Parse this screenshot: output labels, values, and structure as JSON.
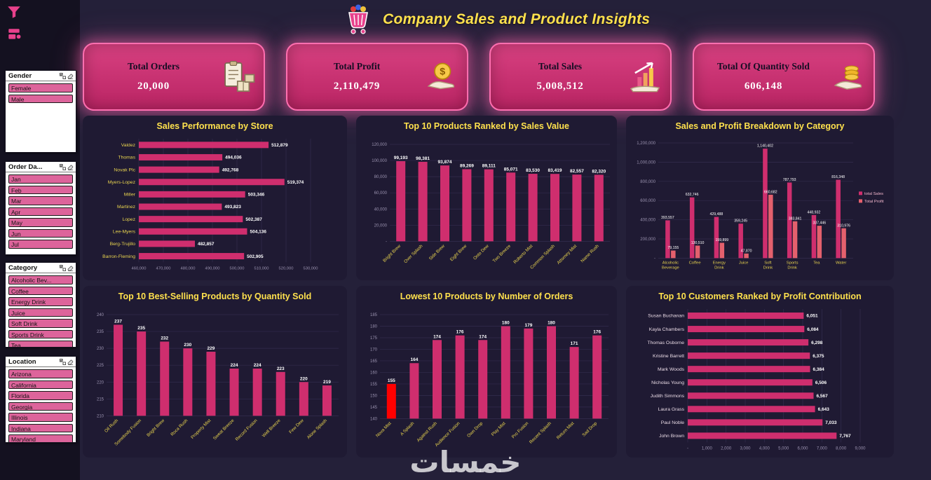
{
  "header": {
    "title": "Company Sales and Product Insights",
    "icon": "shopping-cart-icon"
  },
  "colors": {
    "background": "#242039",
    "panel": "#1f1a33",
    "accent_pink": "#cf2e6e",
    "profit_salmon": "#e4606d",
    "title_yellow": "#ffe14d",
    "highlight_red": "#ff0000",
    "kpi_card_pink": "#d84181"
  },
  "kpis": [
    {
      "label": "Total Orders",
      "value": "20,000",
      "icon": "clipboard-boxes-icon"
    },
    {
      "label": "Total Profit",
      "value": "2,110,479",
      "icon": "profit-hand-icon"
    },
    {
      "label": "Total Sales",
      "value": "5,008,512",
      "icon": "sales-growth-icon"
    },
    {
      "label": "Total Of Quantity Sold",
      "value": "606,148",
      "icon": "coins-hand-icon"
    }
  ],
  "slicers": [
    {
      "title": "Gender",
      "items": [
        "Female",
        "Male"
      ],
      "tool_icons": [
        "select-all-icon",
        "eraser-icon"
      ]
    },
    {
      "title": "Order Da...",
      "items": [
        "Jan",
        "Feb",
        "Mar",
        "Apr",
        "May",
        "Jun",
        "Jul"
      ],
      "tool_icons": [
        "select-all-icon",
        "eraser-icon"
      ]
    },
    {
      "title": "Category",
      "items": [
        "Alcoholic Bev...",
        "Coffee",
        "Energy Drink",
        "Juice",
        "Soft Drink",
        "Sports Drink",
        "Tea"
      ],
      "tool_icons": [
        "select-all-icon",
        "eraser-icon"
      ]
    },
    {
      "title": "Location",
      "items": [
        "Arizona",
        "California",
        "Florida",
        "Georgia",
        "Illinois",
        "Indiana",
        "Maryland"
      ],
      "tool_icons": [
        "select-all-icon",
        "eraser-icon"
      ]
    }
  ],
  "corner_icons": [
    "funnel-icon",
    "shapes-icon"
  ],
  "watermark": "خمسات",
  "chart_data": [
    {
      "type": "bar",
      "orientation": "horizontal",
      "title": "Sales Performance by Store",
      "categories": [
        "Valdez",
        "Thomas",
        "Novak Plc",
        "Myers-Lopez",
        "Miller",
        "Martinez",
        "Lopez",
        "Lee-Myers",
        "Berg-Trujillo",
        "Barron-Fleming"
      ],
      "values": [
        512879,
        494036,
        492768,
        519374,
        503346,
        493823,
        502387,
        504136,
        482857,
        502905
      ],
      "xlim": [
        460000,
        530000
      ],
      "xtick_step": 10000,
      "grid": true,
      "legend": false
    },
    {
      "type": "bar",
      "orientation": "vertical",
      "title": "Top 10 Products Ranked by Sales Value",
      "categories": [
        "Bright Brew",
        "Over Splash",
        "Side Brew",
        "Eight Brew",
        "Onto Dew",
        "Two Breeze",
        "Roberto Mist",
        "Common Splash",
        "Attorney Mist",
        "Name Rush"
      ],
      "values": [
        99193,
        98381,
        93874,
        89269,
        89111,
        85071,
        83530,
        83419,
        82557,
        82320
      ],
      "ylim": [
        0,
        120000
      ],
      "ytick_step": 20000,
      "zero_dash": true,
      "grid": true,
      "legend": false
    },
    {
      "type": "bar",
      "orientation": "vertical",
      "grouped": true,
      "title": "Sales and Profit Breakdown by Category",
      "categories": [
        "Alcoholic Beverage",
        "Coffee",
        "Energy Drink",
        "Juice",
        "Soft Drink",
        "Sports Drink",
        "Tea",
        "Water"
      ],
      "series": [
        {
          "name": "total Sales",
          "color": "#cf2e6e",
          "values": [
            393557,
            632746,
            429488,
            359245,
            1140402,
            787793,
            448932,
            816348
          ]
        },
        {
          "name": "Total Profit",
          "color": "#e4606d",
          "values": [
            79155,
            130510,
            159899,
            47870,
            660682,
            383841,
            337446,
            310976
          ]
        }
      ],
      "ylim": [
        0,
        1200000
      ],
      "ytick_step": 200000,
      "zero_dash": true,
      "grid": true,
      "legend_position": "right"
    },
    {
      "type": "bar",
      "orientation": "vertical",
      "title": "Top 10 Best-Selling Products by Quantity Sold",
      "categories": [
        "Oil Rush",
        "Somebody Fusion",
        "Bright Brew",
        "Roca Rush",
        "Property Mist",
        "Sweat Breeze",
        "Record Fusion",
        "Well Breeze",
        "Few Dew",
        "Alone Splash"
      ],
      "values": [
        237,
        235,
        232,
        230,
        229,
        224,
        224,
        223,
        220,
        219
      ],
      "ylim": [
        210,
        240
      ],
      "ytick_step": 5,
      "comma": false,
      "grid": true,
      "legend": false
    },
    {
      "type": "bar",
      "orientation": "vertical",
      "title": "Lowest 10 Products by Number of Orders",
      "categories": [
        "Nova Mist",
        "A Splash",
        "Against Rush",
        "Audience Fusion",
        "Own Drop",
        "Play Mist",
        "Pro Fusion",
        "Recent Splash",
        "Return Mist",
        "Sad Drop"
      ],
      "values": [
        155,
        164,
        174,
        176,
        174,
        180,
        179,
        180,
        171,
        176
      ],
      "highlight_index": 0,
      "highlight_color": "#ff0000",
      "ylim": [
        140,
        185
      ],
      "ytick_step": 5,
      "comma": false,
      "grid": true,
      "legend": false
    },
    {
      "type": "bar",
      "orientation": "horizontal",
      "title": "Top 10 Customers Ranked by Profit Contribution",
      "categories": [
        "Susan Buchanan",
        "Kayla Chambers",
        "Thomas Osborne",
        "Kristine Barrett",
        "Mark Woods",
        "Nicholas Young",
        "Judith Simmons",
        "Laura Grass",
        "Paul Noble",
        "John Brown"
      ],
      "values": [
        6051,
        6084,
        6298,
        6375,
        6384,
        6506,
        6567,
        6643,
        7033,
        7767
      ],
      "xlim": [
        0,
        9000
      ],
      "xtick_step": 1000,
      "zero_dash": true,
      "grid": true,
      "legend": false
    }
  ]
}
